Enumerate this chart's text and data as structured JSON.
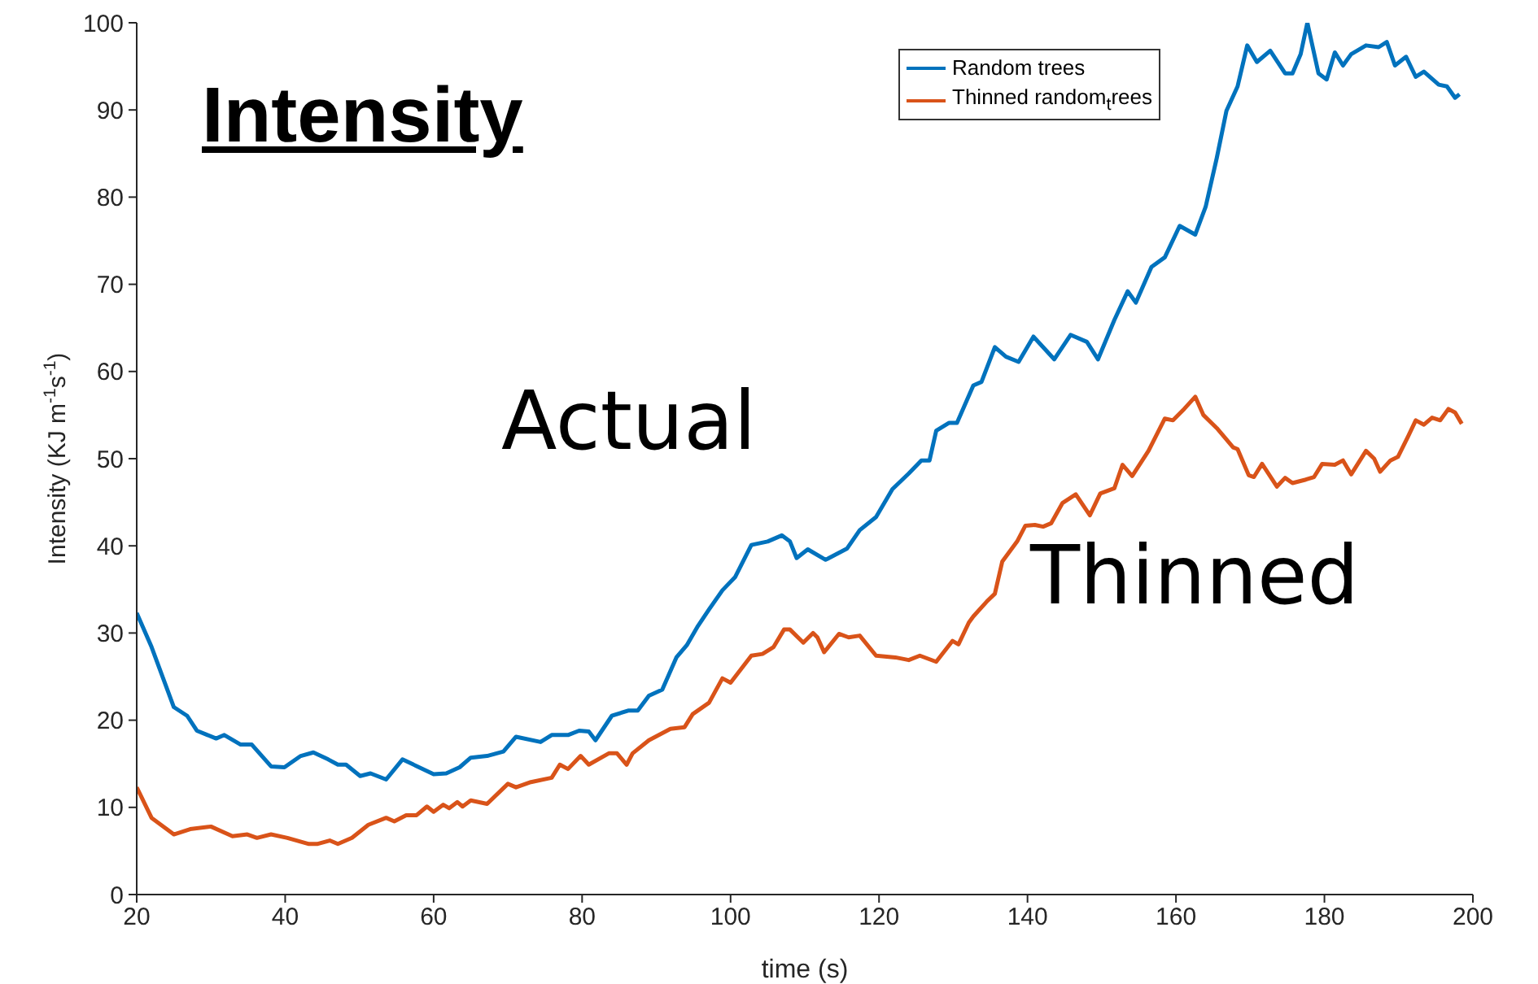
{
  "chart_data": {
    "type": "line",
    "title": "Intensity",
    "xlabel": "time (s)",
    "ylabel": "Intensity (KJ m$^{-1}$s$^{-1}$)",
    "xlim": [
      20,
      200
    ],
    "xticks": [
      20,
      40,
      60,
      80,
      100,
      120,
      140,
      160,
      180,
      200
    ],
    "ylim": [
      0,
      100
    ],
    "yticks": [
      0,
      10,
      20,
      30,
      40,
      50,
      60,
      70,
      80,
      90,
      100
    ],
    "grid": false,
    "legend": "top right",
    "marker": "none",
    "line_style": "solid",
    "annotations": [
      "Actual",
      "Thinned"
    ],
    "series": [
      {
        "name": "Random trees",
        "color": "#0072bd",
        "x": [
          20,
          22,
          25,
          26.8,
          28.1,
          30.7,
          31.8,
          34,
          35.5,
          38.1,
          39.9,
          42.1,
          43.8,
          45.8,
          47.1,
          48.2,
          50.1,
          51.5,
          53.6,
          55.8,
          57.8,
          60,
          61.7,
          63.5,
          65,
          67.2,
          69.4,
          71.1,
          74.4,
          75.9,
          78.1,
          79.6,
          80.9,
          81.8,
          84,
          86.2,
          87.5,
          89,
          90.8,
          92.7,
          94.1,
          95.6,
          97.1,
          98.9,
          100.6,
          102.8,
          105,
          106.9,
          108,
          108.9,
          110.4,
          112.8,
          115.7,
          117.4,
          119.6,
          121.8,
          124,
          125.7,
          126.8,
          127.7,
          129.4,
          130.5,
          132.7,
          133.8,
          135.6,
          137.1,
          138.8,
          140.8,
          143.6,
          145.8,
          148,
          149.5,
          151.7,
          153.5,
          154.6,
          156.7,
          158.5,
          160.5,
          162.6,
          164,
          165.5,
          166.8,
          168.3,
          169.6,
          170.9,
          172.7,
          174.7,
          175.7,
          176.8,
          177.7,
          179.2,
          180.3,
          181.4,
          182.5,
          183.6,
          185.6,
          187.3,
          188.4,
          189.5,
          191,
          192.3,
          193.4,
          195.4,
          196.5,
          197.6,
          198.2
        ],
        "values": [
          32.3,
          28.4,
          21.5,
          20.5,
          18.8,
          17.9,
          18.3,
          17.2,
          17.2,
          14.7,
          14.6,
          15.9,
          16.3,
          15.5,
          14.9,
          14.9,
          13.6,
          13.9,
          13.2,
          15.5,
          14.7,
          13.8,
          13.9,
          14.6,
          15.7,
          15.9,
          16.4,
          18.1,
          17.5,
          18.3,
          18.3,
          18.8,
          18.7,
          17.7,
          20.5,
          21.1,
          21.1,
          22.8,
          23.5,
          27.2,
          28.6,
          30.8,
          32.7,
          34.9,
          36.4,
          40.1,
          40.5,
          41.2,
          40.5,
          38.6,
          39.6,
          38.4,
          39.7,
          41.8,
          43.3,
          46.5,
          48.3,
          49.8,
          49.8,
          53.2,
          54.1,
          54.1,
          58.4,
          58.8,
          62.8,
          61.7,
          61.1,
          64,
          61.4,
          64.2,
          63.4,
          61.4,
          65.9,
          69.2,
          67.9,
          72,
          73.1,
          76.7,
          75.7,
          78.9,
          84.5,
          89.9,
          92.7,
          97.4,
          95.5,
          96.8,
          94.2,
          94.2,
          96.4,
          100,
          94.2,
          93.5,
          96.6,
          95.1,
          96.4,
          97.4,
          97.2,
          97.8,
          95.1,
          96.1,
          93.8,
          94.4,
          92.9,
          92.7,
          91.4,
          91.8
        ]
      },
      {
        "name": "Thinned random$_{t}$rees",
        "color": "#d95319",
        "x": [
          20,
          22,
          25,
          27.2,
          30,
          32.9,
          34.9,
          36.2,
          38.1,
          40.3,
          43.2,
          44.3,
          46,
          47.1,
          49,
          51.2,
          53.6,
          54.7,
          56.3,
          57.7,
          59.1,
          60,
          61.3,
          62.1,
          63.2,
          63.9,
          65,
          67.2,
          70,
          71.1,
          73.1,
          75.9,
          77,
          78.1,
          79.8,
          80.9,
          83.6,
          84.7,
          86,
          86.8,
          89,
          91.9,
          93.8,
          94.9,
          97.1,
          98.9,
          100,
          102.8,
          104.3,
          105.8,
          107.2,
          108,
          109.8,
          111.1,
          111.7,
          112.6,
          114.6,
          115.9,
          117.4,
          119.6,
          122.2,
          124,
          125.5,
          127.7,
          129.9,
          130.7,
          132.1,
          132.7,
          134.5,
          135.6,
          136.6,
          138.6,
          139.7,
          141,
          142.1,
          143.2,
          144.7,
          146.5,
          148.4,
          149.8,
          151.7,
          152.8,
          154.1,
          156.3,
          158.5,
          159.6,
          161.1,
          162.6,
          163.7,
          165.5,
          167.7,
          168.3,
          169.8,
          170.5,
          171.6,
          173.6,
          174.7,
          175.7,
          177.5,
          178.6,
          179.7,
          181.4,
          182.5,
          183.6,
          185.6,
          186.7,
          187.5,
          188.9,
          189.9,
          191.3,
          192.3,
          193.4,
          194.5,
          195.6,
          196.7,
          197.6,
          198.5
        ],
        "values": [
          12.3,
          8.8,
          6.9,
          7.5,
          7.8,
          6.7,
          6.9,
          6.5,
          6.9,
          6.5,
          5.8,
          5.8,
          6.2,
          5.8,
          6.5,
          8,
          8.8,
          8.4,
          9.1,
          9.1,
          10.1,
          9.5,
          10.3,
          9.9,
          10.6,
          10.1,
          10.8,
          10.4,
          12.7,
          12.3,
          12.9,
          13.4,
          14.9,
          14.4,
          15.9,
          14.9,
          16.2,
          16.2,
          14.9,
          16.2,
          17.7,
          19,
          19.2,
          20.7,
          22,
          24.8,
          24.3,
          27.4,
          27.6,
          28.4,
          30.4,
          30.4,
          28.9,
          30,
          29.5,
          27.8,
          29.9,
          29.5,
          29.7,
          27.4,
          27.2,
          26.9,
          27.4,
          26.7,
          29.1,
          28.7,
          31.2,
          31.9,
          33.6,
          34.5,
          38.2,
          40.5,
          42.3,
          42.4,
          42.2,
          42.6,
          44.9,
          45.9,
          43.5,
          46,
          46.6,
          49.3,
          48,
          50.9,
          54.6,
          54.4,
          55.7,
          57.1,
          55,
          53.5,
          51.3,
          51.1,
          48.1,
          47.9,
          49.4,
          46.8,
          47.8,
          47.2,
          47.6,
          47.9,
          49.4,
          49.3,
          49.8,
          48.2,
          50.9,
          50,
          48.5,
          49.8,
          50.2,
          52.6,
          54.4,
          53.9,
          54.7,
          54.4,
          55.7,
          55.3,
          54
        ]
      }
    ]
  }
}
